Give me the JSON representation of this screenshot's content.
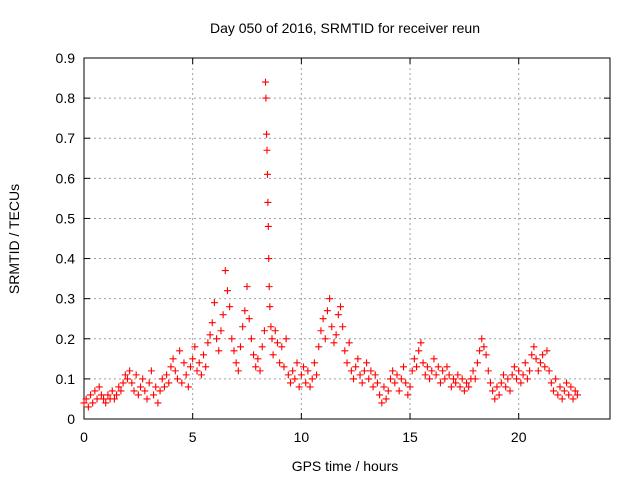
{
  "chart_data": {
    "type": "scatter",
    "title": "Day 050 of 2016, SRMTID for receiver reun",
    "xlabel": "GPS time / hours",
    "ylabel": "SRMTID / TECUs",
    "xlim": [
      0,
      24.2
    ],
    "ylim": [
      0,
      0.9
    ],
    "x_ticks": [
      0,
      5,
      10,
      15,
      20
    ],
    "y_ticks": [
      0,
      0.1,
      0.2,
      0.3,
      0.4,
      0.5,
      0.6,
      0.7,
      0.8,
      0.9
    ],
    "x_tick_labels": [
      "0",
      "5",
      "10",
      "15",
      "20"
    ],
    "y_tick_labels": [
      "0",
      "0.1",
      "0.2",
      "0.3",
      "0.4",
      "0.5",
      "0.6",
      "0.7",
      "0.8",
      "0.9"
    ],
    "grid": true,
    "marker": "+",
    "color": "#ff0000",
    "series": [
      {
        "name": "SRMTID",
        "points": [
          [
            0.0,
            0.04
          ],
          [
            0.1,
            0.05
          ],
          [
            0.2,
            0.03
          ],
          [
            0.3,
            0.06
          ],
          [
            0.4,
            0.04
          ],
          [
            0.5,
            0.07
          ],
          [
            0.6,
            0.05
          ],
          [
            0.7,
            0.08
          ],
          [
            0.8,
            0.06
          ],
          [
            0.9,
            0.05
          ],
          [
            1.0,
            0.04
          ],
          [
            1.1,
            0.06
          ],
          [
            1.2,
            0.05
          ],
          [
            1.3,
            0.07
          ],
          [
            1.4,
            0.05
          ],
          [
            1.5,
            0.06
          ],
          [
            1.6,
            0.08
          ],
          [
            1.7,
            0.07
          ],
          [
            1.8,
            0.09
          ],
          [
            1.9,
            0.11
          ],
          [
            2.0,
            0.1
          ],
          [
            2.1,
            0.12
          ],
          [
            2.2,
            0.09
          ],
          [
            2.3,
            0.07
          ],
          [
            2.4,
            0.11
          ],
          [
            2.5,
            0.06
          ],
          [
            2.6,
            0.08
          ],
          [
            2.7,
            0.1
          ],
          [
            2.8,
            0.07
          ],
          [
            2.9,
            0.05
          ],
          [
            3.0,
            0.09
          ],
          [
            3.1,
            0.12
          ],
          [
            3.2,
            0.06
          ],
          [
            3.3,
            0.08
          ],
          [
            3.4,
            0.04
          ],
          [
            3.5,
            0.07
          ],
          [
            3.6,
            0.1
          ],
          [
            3.7,
            0.08
          ],
          [
            3.8,
            0.11
          ],
          [
            3.9,
            0.09
          ],
          [
            4.0,
            0.13
          ],
          [
            4.1,
            0.15
          ],
          [
            4.2,
            0.12
          ],
          [
            4.3,
            0.1
          ],
          [
            4.4,
            0.17
          ],
          [
            4.5,
            0.09
          ],
          [
            4.6,
            0.14
          ],
          [
            4.7,
            0.11
          ],
          [
            4.8,
            0.08
          ],
          [
            4.9,
            0.13
          ],
          [
            5.0,
            0.15
          ],
          [
            5.1,
            0.18
          ],
          [
            5.2,
            0.12
          ],
          [
            5.3,
            0.14
          ],
          [
            5.4,
            0.11
          ],
          [
            5.5,
            0.16
          ],
          [
            5.6,
            0.13
          ],
          [
            5.7,
            0.19
          ],
          [
            5.8,
            0.21
          ],
          [
            5.9,
            0.24
          ],
          [
            6.0,
            0.29
          ],
          [
            6.1,
            0.2
          ],
          [
            6.2,
            0.17
          ],
          [
            6.3,
            0.22
          ],
          [
            6.4,
            0.26
          ],
          [
            6.5,
            0.37
          ],
          [
            6.6,
            0.32
          ],
          [
            6.7,
            0.28
          ],
          [
            6.8,
            0.2
          ],
          [
            6.9,
            0.17
          ],
          [
            7.0,
            0.14
          ],
          [
            7.1,
            0.12
          ],
          [
            7.2,
            0.18
          ],
          [
            7.3,
            0.23
          ],
          [
            7.4,
            0.27
          ],
          [
            7.5,
            0.33
          ],
          [
            7.6,
            0.25
          ],
          [
            7.7,
            0.2
          ],
          [
            7.8,
            0.16
          ],
          [
            7.9,
            0.13
          ],
          [
            8.0,
            0.15
          ],
          [
            8.1,
            0.12
          ],
          [
            8.2,
            0.18
          ],
          [
            8.3,
            0.22
          ],
          [
            8.35,
            0.84
          ],
          [
            8.37,
            0.8
          ],
          [
            8.4,
            0.71
          ],
          [
            8.42,
            0.67
          ],
          [
            8.44,
            0.61
          ],
          [
            8.46,
            0.54
          ],
          [
            8.48,
            0.48
          ],
          [
            8.5,
            0.4
          ],
          [
            8.52,
            0.33
          ],
          [
            8.55,
            0.28
          ],
          [
            8.6,
            0.23
          ],
          [
            8.65,
            0.2
          ],
          [
            8.7,
            0.16
          ],
          [
            8.8,
            0.22
          ],
          [
            8.9,
            0.19
          ],
          [
            9.0,
            0.14
          ],
          [
            9.1,
            0.18
          ],
          [
            9.2,
            0.13
          ],
          [
            9.3,
            0.2
          ],
          [
            9.4,
            0.11
          ],
          [
            9.5,
            0.09
          ],
          [
            9.6,
            0.12
          ],
          [
            9.7,
            0.1
          ],
          [
            9.8,
            0.14
          ],
          [
            9.9,
            0.08
          ],
          [
            10.0,
            0.11
          ],
          [
            10.1,
            0.13
          ],
          [
            10.2,
            0.09
          ],
          [
            10.3,
            0.12
          ],
          [
            10.4,
            0.08
          ],
          [
            10.5,
            0.1
          ],
          [
            10.6,
            0.14
          ],
          [
            10.7,
            0.11
          ],
          [
            10.8,
            0.18
          ],
          [
            10.9,
            0.22
          ],
          [
            11.0,
            0.25
          ],
          [
            11.1,
            0.2
          ],
          [
            11.2,
            0.27
          ],
          [
            11.3,
            0.3
          ],
          [
            11.4,
            0.23
          ],
          [
            11.5,
            0.19
          ],
          [
            11.6,
            0.21
          ],
          [
            11.7,
            0.26
          ],
          [
            11.8,
            0.28
          ],
          [
            11.9,
            0.23
          ],
          [
            12.0,
            0.17
          ],
          [
            12.1,
            0.14
          ],
          [
            12.2,
            0.19
          ],
          [
            12.3,
            0.12
          ],
          [
            12.4,
            0.1
          ],
          [
            12.5,
            0.13
          ],
          [
            12.6,
            0.15
          ],
          [
            12.7,
            0.11
          ],
          [
            12.8,
            0.09
          ],
          [
            12.9,
            0.12
          ],
          [
            13.0,
            0.14
          ],
          [
            13.1,
            0.1
          ],
          [
            13.2,
            0.12
          ],
          [
            13.3,
            0.08
          ],
          [
            13.4,
            0.11
          ],
          [
            13.5,
            0.09
          ],
          [
            13.6,
            0.06
          ],
          [
            13.7,
            0.04
          ],
          [
            13.8,
            0.08
          ],
          [
            13.9,
            0.05
          ],
          [
            14.0,
            0.07
          ],
          [
            14.1,
            0.1
          ],
          [
            14.2,
            0.12
          ],
          [
            14.3,
            0.09
          ],
          [
            14.4,
            0.11
          ],
          [
            14.5,
            0.07
          ],
          [
            14.6,
            0.1
          ],
          [
            14.7,
            0.13
          ],
          [
            14.8,
            0.09
          ],
          [
            14.9,
            0.06
          ],
          [
            15.0,
            0.08
          ],
          [
            15.1,
            0.12
          ],
          [
            15.2,
            0.15
          ],
          [
            15.3,
            0.13
          ],
          [
            15.4,
            0.17
          ],
          [
            15.5,
            0.19
          ],
          [
            15.6,
            0.14
          ],
          [
            15.7,
            0.11
          ],
          [
            15.8,
            0.13
          ],
          [
            15.9,
            0.1
          ],
          [
            16.0,
            0.12
          ],
          [
            16.1,
            0.15
          ],
          [
            16.2,
            0.11
          ],
          [
            16.3,
            0.13
          ],
          [
            16.4,
            0.09
          ],
          [
            16.5,
            0.12
          ],
          [
            16.6,
            0.1
          ],
          [
            16.7,
            0.13
          ],
          [
            16.8,
            0.11
          ],
          [
            16.9,
            0.08
          ],
          [
            17.0,
            0.1
          ],
          [
            17.1,
            0.09
          ],
          [
            17.2,
            0.11
          ],
          [
            17.3,
            0.08
          ],
          [
            17.4,
            0.1
          ],
          [
            17.5,
            0.07
          ],
          [
            17.6,
            0.09
          ],
          [
            17.7,
            0.08
          ],
          [
            17.8,
            0.1
          ],
          [
            17.9,
            0.12
          ],
          [
            18.0,
            0.1
          ],
          [
            18.1,
            0.14
          ],
          [
            18.2,
            0.17
          ],
          [
            18.3,
            0.2
          ],
          [
            18.4,
            0.18
          ],
          [
            18.5,
            0.16
          ],
          [
            18.6,
            0.12
          ],
          [
            18.7,
            0.09
          ],
          [
            18.8,
            0.07
          ],
          [
            18.9,
            0.05
          ],
          [
            19.0,
            0.08
          ],
          [
            19.1,
            0.06
          ],
          [
            19.2,
            0.09
          ],
          [
            19.3,
            0.11
          ],
          [
            19.4,
            0.08
          ],
          [
            19.5,
            0.1
          ],
          [
            19.6,
            0.07
          ],
          [
            19.7,
            0.11
          ],
          [
            19.8,
            0.13
          ],
          [
            19.9,
            0.1
          ],
          [
            20.0,
            0.12
          ],
          [
            20.1,
            0.09
          ],
          [
            20.2,
            0.11
          ],
          [
            20.3,
            0.14
          ],
          [
            20.4,
            0.1
          ],
          [
            20.5,
            0.12
          ],
          [
            20.6,
            0.16
          ],
          [
            20.7,
            0.18
          ],
          [
            20.8,
            0.15
          ],
          [
            20.9,
            0.12
          ],
          [
            21.0,
            0.14
          ],
          [
            21.1,
            0.16
          ],
          [
            21.2,
            0.13
          ],
          [
            21.3,
            0.17
          ],
          [
            21.4,
            0.12
          ],
          [
            21.5,
            0.09
          ],
          [
            21.6,
            0.07
          ],
          [
            21.7,
            0.1
          ],
          [
            21.8,
            0.06
          ],
          [
            21.9,
            0.08
          ],
          [
            22.0,
            0.05
          ],
          [
            22.1,
            0.07
          ],
          [
            22.2,
            0.09
          ],
          [
            22.3,
            0.06
          ],
          [
            22.4,
            0.08
          ],
          [
            22.5,
            0.05
          ],
          [
            22.6,
            0.07
          ],
          [
            22.7,
            0.06
          ]
        ]
      }
    ]
  }
}
